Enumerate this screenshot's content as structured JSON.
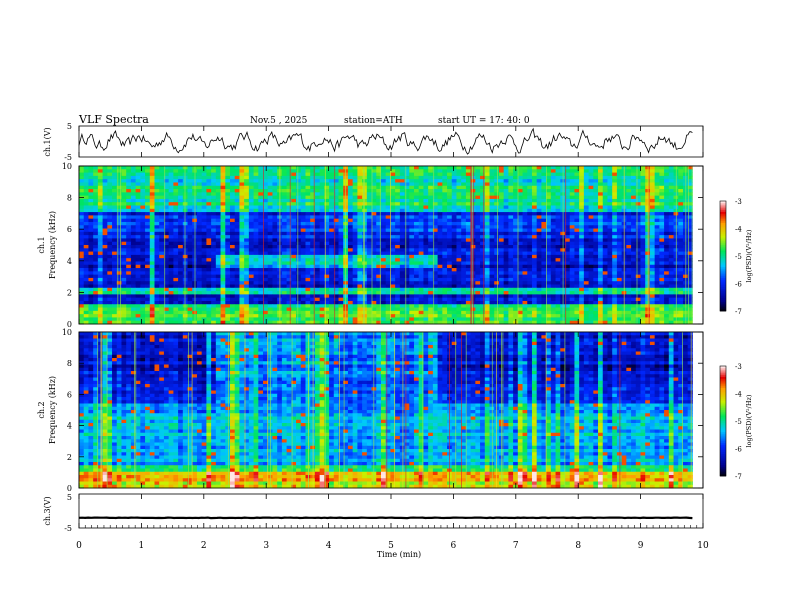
{
  "header": {
    "title": "VLF  Spectra",
    "date": "Nov.5  , 2025",
    "station": "station=ATH",
    "start": "start  UT  =    17: 40: 0"
  },
  "chart_data": [
    {
      "type": "line",
      "name": "ch1-waveform",
      "ylabel": "ch.1(V)",
      "ylim": [
        -5,
        5
      ],
      "yticks": [
        "5",
        "-5"
      ],
      "xlim": [
        0,
        10
      ],
      "xdata_end": 9.83,
      "note": "noisy waveform, amplitude roughly -3..+3 V"
    },
    {
      "type": "heatmap",
      "name": "ch1-spectrogram",
      "ylabel": "ch.1\nFrequency (kHz)",
      "ylim": [
        0,
        10
      ],
      "yticks": [
        "0",
        "2",
        "4",
        "6",
        "8",
        "10"
      ],
      "xlim": [
        0,
        10
      ],
      "xdata_end": 9.83,
      "colorbar": {
        "label": "log(PSD)(V²/Hz)",
        "range": [
          -7,
          -3
        ],
        "ticks": [
          "-3",
          "-4",
          "-5",
          "-6",
          "-7"
        ]
      },
      "features": [
        {
          "kind": "band",
          "t0": 2.2,
          "t1": 5.75,
          "f0": 3.6,
          "f1": 4.4,
          "level": -5.2,
          "desc": "elevated band 2.2-5.75 min"
        },
        {
          "kind": "band",
          "t0": 0,
          "t1": 9.83,
          "f0": 0,
          "f1": 1.2,
          "level": -4.8,
          "desc": "low frequency strong"
        }
      ]
    },
    {
      "type": "heatmap",
      "name": "ch2-spectrogram",
      "ylabel": "ch.2\nFrequency (kHz)",
      "ylim": [
        0,
        10
      ],
      "yticks": [
        "0",
        "2",
        "4",
        "6",
        "8",
        "10"
      ],
      "xlim": [
        0,
        10
      ],
      "xdata_end": 9.83,
      "colorbar": {
        "label": "log(PSD)(V²/Hz)",
        "range": [
          -7,
          -3
        ],
        "ticks": [
          "-3",
          "-4",
          "-5",
          "-6",
          "-7"
        ]
      },
      "features": [
        {
          "kind": "band",
          "t0": 0,
          "t1": 9.83,
          "f0": 0.5,
          "f1": 1.0,
          "level": -3.8,
          "desc": "red band near 0.7 kHz"
        },
        {
          "kind": "band",
          "t0": 2.2,
          "t1": 5.75,
          "f0": 3.4,
          "f1": 10,
          "level": -5.6,
          "desc": "elevated broadband 2.2-5.75 min"
        }
      ]
    },
    {
      "type": "line",
      "name": "ch3-waveform",
      "ylabel": "ch.3(V)",
      "ylim": [
        -5,
        5
      ],
      "yticks": [
        "5",
        "-5"
      ],
      "xlim": [
        0,
        10
      ],
      "xdata_end": 9.83,
      "note": "nearly flat trace around -2 V"
    }
  ],
  "xaxis": {
    "label": "Time  (min)",
    "ticks": [
      "0",
      "1",
      "2",
      "3",
      "4",
      "5",
      "6",
      "7",
      "8",
      "9",
      "10"
    ]
  }
}
